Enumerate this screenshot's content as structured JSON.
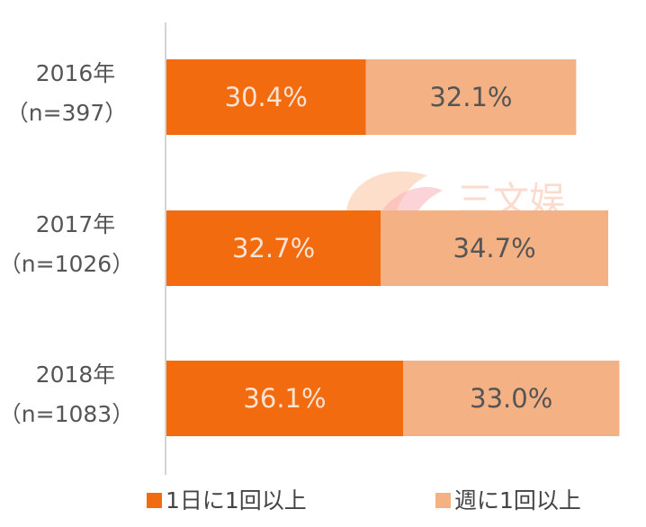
{
  "chart_data": {
    "type": "bar",
    "orientation": "horizontal",
    "stacked": true,
    "categories": [
      {
        "year": "2016年",
        "n": "（n=397）"
      },
      {
        "year": "2017年",
        "n": "（n=1026）"
      },
      {
        "year": "2018年",
        "n": "（n=1083）"
      }
    ],
    "series": [
      {
        "name": "1日に1回以上",
        "color": "#f26b0f",
        "label_color": "#fbe3d4",
        "values": [
          30.4,
          32.7,
          36.1
        ],
        "labels": [
          "30.4%",
          "32.7%",
          "36.1%"
        ]
      },
      {
        "name": "週に1回以上",
        "color": "#f4b183",
        "label_color": "#555555",
        "values": [
          32.1,
          34.7,
          33.0
        ],
        "labels": [
          "32.1%",
          "34.7%",
          "33.0%"
        ]
      }
    ],
    "xlim": [
      0,
      70
    ],
    "grid": false,
    "legend_position": "bottom"
  },
  "watermark": {
    "text": "三文娱"
  }
}
